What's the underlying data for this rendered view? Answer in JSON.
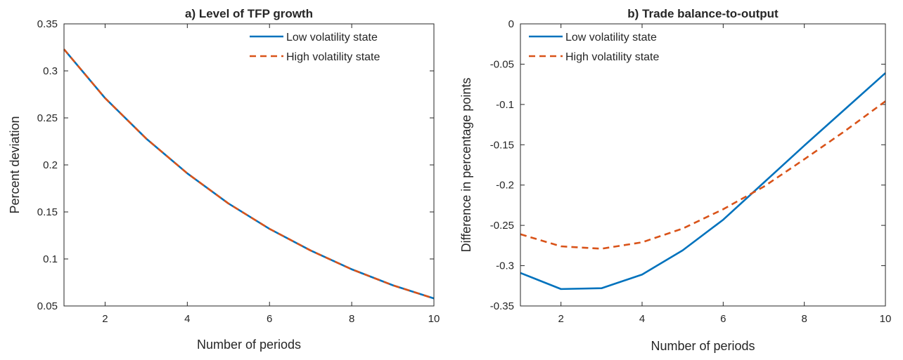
{
  "chart_data": [
    {
      "type": "line",
      "title": "a) Level of TFP growth",
      "xlabel": "Number of periods",
      "ylabel": "Percent deviation",
      "xlim": [
        1,
        10
      ],
      "ylim": [
        0.05,
        0.35
      ],
      "xticks": [
        2,
        4,
        6,
        8,
        10
      ],
      "xtick_labels": [
        "2",
        "4",
        "6",
        "8",
        "10"
      ],
      "yticks": [
        0.05,
        0.1,
        0.15,
        0.2,
        0.25,
        0.3,
        0.35
      ],
      "ytick_labels": [
        "0.05",
        "0.1",
        "0.15",
        "0.2",
        "0.25",
        "0.3",
        "0.35"
      ],
      "legend_position": "top-right",
      "x": [
        1,
        2,
        3,
        4,
        5,
        6,
        7,
        8,
        9,
        10
      ],
      "series": [
        {
          "name": "Low volatility state",
          "style": "solid",
          "color": "#0072BD",
          "values": [
            0.323,
            0.271,
            0.228,
            0.191,
            0.159,
            0.132,
            0.109,
            0.089,
            0.072,
            0.058
          ]
        },
        {
          "name": "High volatility state",
          "style": "dashed",
          "color": "#D95319",
          "values": [
            0.323,
            0.271,
            0.228,
            0.191,
            0.159,
            0.132,
            0.109,
            0.089,
            0.072,
            0.058
          ]
        }
      ]
    },
    {
      "type": "line",
      "title": "b) Trade balance-to-output",
      "xlabel": "Number of periods",
      "ylabel": "Difference in percentage points",
      "xlim": [
        1,
        10
      ],
      "ylim": [
        -0.35,
        0
      ],
      "xticks": [
        2,
        4,
        6,
        8,
        10
      ],
      "xtick_labels": [
        "2",
        "4",
        "6",
        "8",
        "10"
      ],
      "yticks": [
        -0.35,
        -0.3,
        -0.25,
        -0.2,
        -0.15,
        -0.1,
        -0.05,
        0
      ],
      "ytick_labels": [
        "-0.35",
        "-0.3",
        "-0.25",
        "-0.2",
        "-0.15",
        "-0.1",
        "-0.05",
        "0"
      ],
      "legend_position": "top-left",
      "zero_line": true,
      "x": [
        1,
        2,
        3,
        4,
        5,
        6,
        7,
        8,
        9,
        10
      ],
      "series": [
        {
          "name": "Low volatility state",
          "style": "solid",
          "color": "#0072BD",
          "values": [
            -0.309,
            -0.329,
            -0.328,
            -0.311,
            -0.281,
            -0.243,
            -0.197,
            -0.151,
            -0.106,
            -0.061
          ]
        },
        {
          "name": "High volatility state",
          "style": "dashed",
          "color": "#D95319",
          "values": [
            -0.261,
            -0.276,
            -0.279,
            -0.271,
            -0.254,
            -0.23,
            -0.202,
            -0.168,
            -0.133,
            -0.096
          ]
        }
      ]
    }
  ]
}
